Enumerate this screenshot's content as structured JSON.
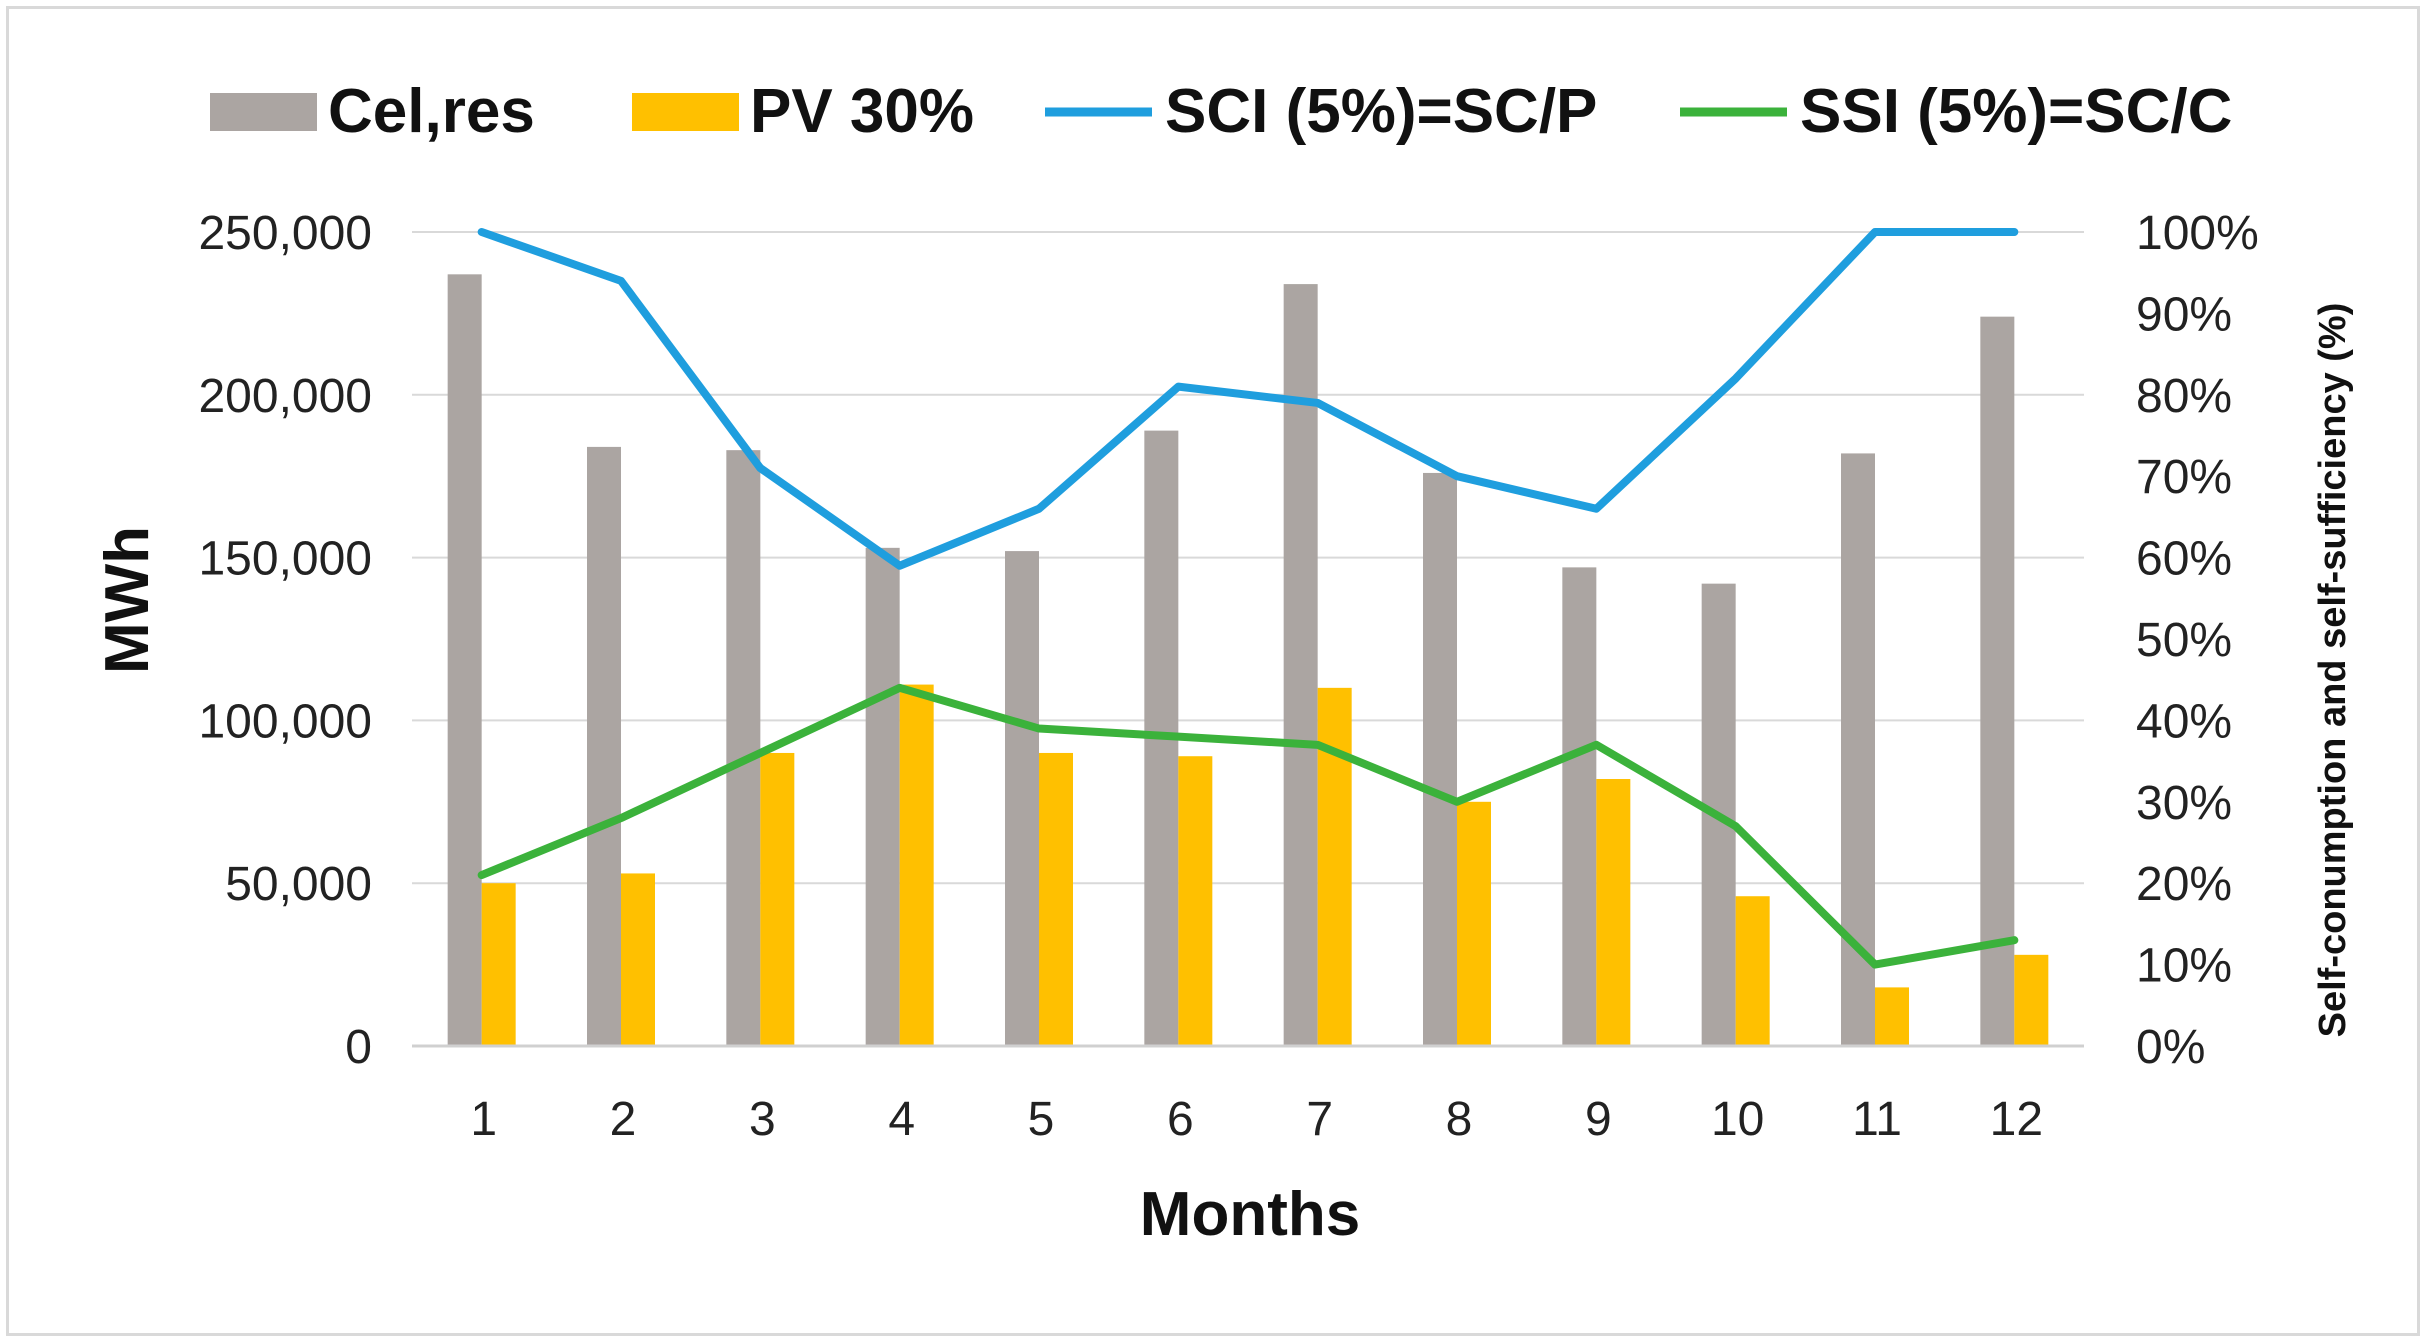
{
  "chart_data": {
    "type": "bar",
    "title": "",
    "xlabel": "Months",
    "ylabel": "MWh",
    "y2label": "Self-conumption and self-sufficiency (%)",
    "categories": [
      "1",
      "2",
      "3",
      "4",
      "5",
      "6",
      "7",
      "8",
      "9",
      "10",
      "11",
      "12"
    ],
    "ylim": [
      0,
      250000
    ],
    "y2lim": [
      0,
      100
    ],
    "yticks": [
      "0",
      "50,000",
      "100,000",
      "150,000",
      "200,000",
      "250,000"
    ],
    "y2ticks": [
      "0%",
      "10%",
      "20%",
      "30%",
      "40%",
      "50%",
      "60%",
      "70%",
      "80%",
      "90%",
      "100%"
    ],
    "grid": true,
    "legend_position": "top",
    "series": [
      {
        "name": "Cel,res",
        "kind": "bar",
        "axis": "left",
        "color": "#aba5a2",
        "values": [
          237000,
          184000,
          183000,
          153000,
          152000,
          189000,
          234000,
          176000,
          147000,
          142000,
          182000,
          224000
        ]
      },
      {
        "name": "PV 30%",
        "kind": "bar",
        "axis": "left",
        "color": "#ffc000",
        "values": [
          50000,
          53000,
          90000,
          111000,
          90000,
          89000,
          110000,
          75000,
          82000,
          46000,
          18000,
          28000
        ]
      },
      {
        "name": "SCI (5%)=SC/P",
        "kind": "line",
        "axis": "right",
        "color": "#1f9ede",
        "values": [
          100,
          94,
          71,
          59,
          66,
          81,
          79,
          70,
          66,
          82,
          100,
          100
        ]
      },
      {
        "name": "SSI (5%)=SC/C",
        "kind": "line",
        "axis": "right",
        "color": "#3bb23b",
        "values": [
          21,
          28,
          36,
          44,
          39,
          38,
          37,
          30,
          37,
          27,
          10,
          13
        ]
      }
    ]
  }
}
